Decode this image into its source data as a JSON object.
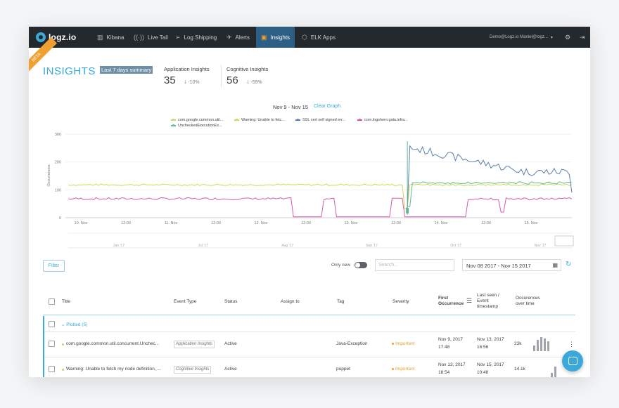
{
  "nav": {
    "logo": "logz.io",
    "items": [
      {
        "label": "Kibana",
        "icon": "bar-chart-icon"
      },
      {
        "label": "Live Tail",
        "icon": "broadcast-icon"
      },
      {
        "label": "Log Shipping",
        "icon": "paper-plane-icon"
      },
      {
        "label": "Alerts",
        "icon": "megaphone-icon"
      },
      {
        "label": "Insights",
        "icon": "insights-icon",
        "active": true
      },
      {
        "label": "ELK Apps",
        "icon": "cube-icon"
      }
    ],
    "user": "Demo@Logz.io Maniel@logz...",
    "settings_icon": "gear-icon",
    "logout_icon": "logout-icon"
  },
  "beta_badge": "BETA",
  "header": {
    "title": "INSIGHTS",
    "range_button": "Last 7 days summary",
    "stats": [
      {
        "label": "Application Insights",
        "value": "35",
        "delta": "-10%"
      },
      {
        "label": "Cognitive Insights",
        "value": "56",
        "delta": "-59%"
      }
    ]
  },
  "chart_data": {
    "type": "line",
    "title": "Nov 9 - Nov 15",
    "clear_graph": "Clear Graph",
    "ylabel": "Occurrences",
    "ylim": [
      0,
      300
    ],
    "y_ticks": [
      "300",
      "200",
      "100",
      "0"
    ],
    "x_ticks": [
      "10. Nov",
      "12:00",
      "11. Nov",
      "12:00",
      "12. Nov",
      "12:00",
      "13. Nov",
      "12:00",
      "14. Nov",
      "12:00",
      "15. Nov"
    ],
    "navigator_ticks": [
      "Jan '17",
      "Jul '17",
      "Aug '17",
      "Sep '17",
      "Oct '17",
      "Nov '17"
    ],
    "series": [
      {
        "name": "com.google.common.util...",
        "color": "#c5d86d"
      },
      {
        "name": "Warning: Unable to fetc...",
        "color": "#d4d45a"
      },
      {
        "name": "SSL cert self signed err...",
        "color": "#5b7fa8"
      },
      {
        "name": "com.logshero.gaia.infra...",
        "color": "#d35ab0"
      },
      {
        "name": "UncheckedExecutionEx...",
        "color": "#5fb89a"
      }
    ]
  },
  "filters": {
    "filter_button": "Filter",
    "only_new": "Only new",
    "search_placeholder": "Search...",
    "date_range": "Nov 08 2017 - Nov 15 2017"
  },
  "table": {
    "headers": {
      "title": "Title",
      "event_type": "Event Type",
      "status": "Status",
      "assign_to": "Assign to",
      "tag": "Tag",
      "severity": "Severity",
      "first_occurrence": "First Occurrence",
      "last_seen": "Last seen / Event timestamp",
      "occurrences": "Occurences over time"
    },
    "group_label": "Plotted (5)",
    "rows": [
      {
        "title": "com.google.common.util.concurrent.Unchec...",
        "event_type": "Application Insights",
        "status": "Active",
        "tag": "Java-Exception",
        "severity": "Important",
        "first_date": "Nov 9, 2017",
        "first_time": "17:48",
        "last_date": "Nov 13, 2017",
        "last_time": "16:56",
        "occurrences": "23k",
        "dot_color": "#c5d86d"
      },
      {
        "title": "Warning: Unable to fetch my node definition, ...",
        "event_type": "Cognitive Insights",
        "status": "Active",
        "tag": "puppet",
        "severity": "Important",
        "first_date": "Nov 13, 2017",
        "first_time": "18:54",
        "last_date": "Nov 15, 2017",
        "last_time": "10:48",
        "occurrences": "14.1k",
        "dot_color": "#d4d45a"
      }
    ]
  }
}
